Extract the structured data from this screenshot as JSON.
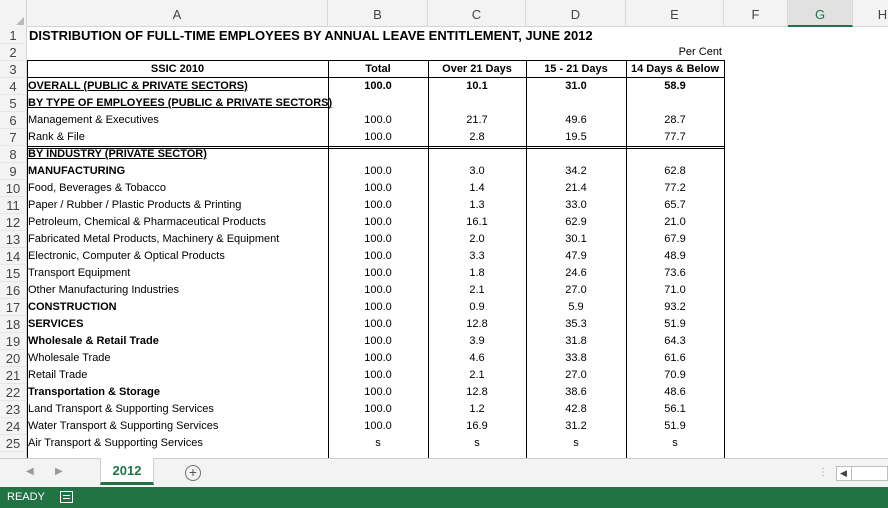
{
  "columns": [
    "A",
    "B",
    "C",
    "D",
    "E",
    "F",
    "G",
    "H"
  ],
  "selected_column": "G",
  "rows": [
    "1",
    "2",
    "3",
    "4",
    "5",
    "6",
    "7",
    "8",
    "9",
    "10",
    "11",
    "12",
    "13",
    "14",
    "15",
    "16",
    "17",
    "18",
    "19",
    "20",
    "21",
    "22",
    "23",
    "24",
    "25"
  ],
  "title": "DISTRIBUTION OF FULL-TIME EMPLOYEES BY ANNUAL LEAVE ENTITLEMENT, JUNE 2012",
  "unit_note": "Per Cent",
  "headers": {
    "ssic": "SSIC 2010",
    "total": "Total",
    "over21": "Over 21 Days",
    "d15_21": "15 - 21 Days",
    "d14below": "14 Days & Below"
  },
  "table": [
    {
      "label": "OVERALL (PUBLIC & PRIVATE SECTORS)",
      "total": "100.0",
      "over21": "10.1",
      "mid": "31.0",
      "low": "58.9",
      "style": "bold-ul"
    },
    {
      "label": "BY TYPE OF EMPLOYEES (PUBLIC & PRIVATE SECTORS)",
      "total": "",
      "over21": "",
      "mid": "",
      "low": "",
      "style": "bold-ul"
    },
    {
      "label": "Management & Executives",
      "total": "100.0",
      "over21": "21.7",
      "mid": "49.6",
      "low": "28.7",
      "style": ""
    },
    {
      "label": "Rank & File",
      "total": "100.0",
      "over21": "2.8",
      "mid": "19.5",
      "low": "77.7",
      "style": ""
    },
    {
      "label": "BY INDUSTRY (PRIVATE SECTOR)",
      "total": "",
      "over21": "",
      "mid": "",
      "low": "",
      "style": "bold-ul"
    },
    {
      "label": "MANUFACTURING",
      "total": "100.0",
      "over21": "3.0",
      "mid": "34.2",
      "low": "62.8",
      "style": "bold"
    },
    {
      "label": "Food, Beverages & Tobacco",
      "total": "100.0",
      "over21": "1.4",
      "mid": "21.4",
      "low": "77.2",
      "style": ""
    },
    {
      "label": "Paper / Rubber / Plastic Products & Printing",
      "total": "100.0",
      "over21": "1.3",
      "mid": "33.0",
      "low": "65.7",
      "style": ""
    },
    {
      "label": "Petroleum, Chemical & Pharmaceutical Products",
      "total": "100.0",
      "over21": "16.1",
      "mid": "62.9",
      "low": "21.0",
      "style": ""
    },
    {
      "label": "Fabricated Metal Products, Machinery & Equipment",
      "total": "100.0",
      "over21": "2.0",
      "mid": "30.1",
      "low": "67.9",
      "style": ""
    },
    {
      "label": "Electronic, Computer & Optical Products",
      "total": "100.0",
      "over21": "3.3",
      "mid": "47.9",
      "low": "48.9",
      "style": ""
    },
    {
      "label": "Transport Equipment",
      "total": "100.0",
      "over21": "1.8",
      "mid": "24.6",
      "low": "73.6",
      "style": ""
    },
    {
      "label": "Other Manufacturing Industries",
      "total": "100.0",
      "over21": "2.1",
      "mid": "27.0",
      "low": "71.0",
      "style": ""
    },
    {
      "label": "CONSTRUCTION",
      "total": "100.0",
      "over21": "0.9",
      "mid": "5.9",
      "low": "93.2",
      "style": "bold"
    },
    {
      "label": "SERVICES",
      "total": "100.0",
      "over21": "12.8",
      "mid": "35.3",
      "low": "51.9",
      "style": "bold"
    },
    {
      "label": "Wholesale & Retail Trade",
      "total": "100.0",
      "over21": "3.9",
      "mid": "31.8",
      "low": "64.3",
      "style": "bold"
    },
    {
      "label": "Wholesale Trade",
      "total": "100.0",
      "over21": "4.6",
      "mid": "33.8",
      "low": "61.6",
      "style": ""
    },
    {
      "label": "Retail Trade",
      "total": "100.0",
      "over21": "2.1",
      "mid": "27.0",
      "low": "70.9",
      "style": ""
    },
    {
      "label": "Transportation & Storage",
      "total": "100.0",
      "over21": "12.8",
      "mid": "38.6",
      "low": "48.6",
      "style": "bold"
    },
    {
      "label": "Land Transport & Supporting Services",
      "total": "100.0",
      "over21": "1.2",
      "mid": "42.8",
      "low": "56.1",
      "style": ""
    },
    {
      "label": "Water Transport & Supporting Services",
      "total": "100.0",
      "over21": "16.9",
      "mid": "31.2",
      "low": "51.9",
      "style": ""
    },
    {
      "label": "Air Transport & Supporting Services",
      "total": "s",
      "over21": "s",
      "mid": "s",
      "low": "s",
      "style": ""
    }
  ],
  "sheet_tab": "2012",
  "add_sheet": "+",
  "status": "READY",
  "accent_color": "#217346"
}
